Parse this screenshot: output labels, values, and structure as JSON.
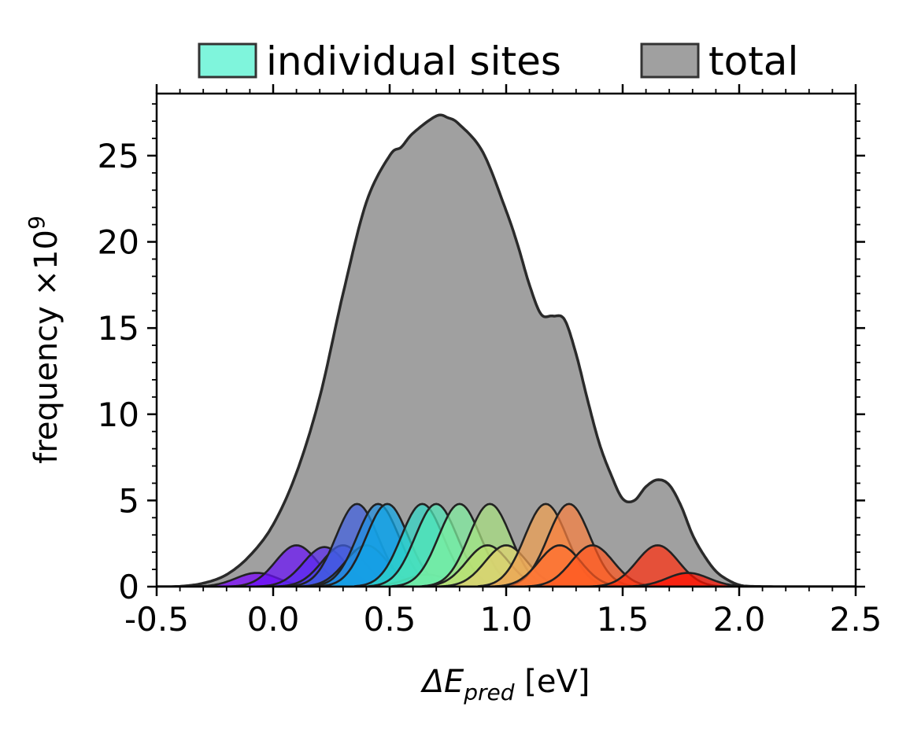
{
  "chart_data": {
    "type": "area",
    "xlabel": "ΔE",
    "xlabel_sub": "pred",
    "xlabel_unit": " [eV]",
    "ylabel": "frequency ×10",
    "ylabel_exp": "9",
    "xlim": [
      -0.5,
      2.5
    ],
    "ylim": [
      0,
      28.6
    ],
    "xticks": [
      -0.5,
      0.0,
      0.5,
      1.0,
      1.5,
      2.0,
      2.5
    ],
    "xtick_labels": [
      "-0.5",
      "0.0",
      "0.5",
      "1.0",
      "1.5",
      "2.0",
      "2.5"
    ],
    "yticks": [
      0,
      5,
      10,
      15,
      20,
      25
    ],
    "ytick_labels": [
      "0",
      "5",
      "10",
      "15",
      "20",
      "25"
    ],
    "grid": false,
    "legend": {
      "position": "top",
      "entries": [
        {
          "label": "individual sites",
          "color": "#7ff5dc"
        },
        {
          "label": "total",
          "color": "#a0a0a0"
        }
      ]
    },
    "sigma": 0.09,
    "sites": [
      {
        "mu": -0.07,
        "height": 0.8,
        "color": "#7a00ff"
      },
      {
        "mu": 0.1,
        "height": 2.4,
        "color": "#6a10f8"
      },
      {
        "mu": 0.22,
        "height": 2.3,
        "color": "#5a2af0"
      },
      {
        "mu": 0.3,
        "height": 2.4,
        "color": "#4b45e8"
      },
      {
        "mu": 0.36,
        "height": 4.8,
        "color": "#4060e0"
      },
      {
        "mu": 0.4,
        "height": 2.4,
        "color": "#307ad8"
      },
      {
        "mu": 0.45,
        "height": 4.8,
        "color": "#2090e0"
      },
      {
        "mu": 0.49,
        "height": 4.8,
        "color": "#10a8e8"
      },
      {
        "mu": 0.66,
        "height": 0.7,
        "color": "#20c0d8"
      },
      {
        "mu": 0.64,
        "height": 4.8,
        "color": "#30d8c8"
      },
      {
        "mu": 0.7,
        "height": 4.8,
        "color": "#50e8b8"
      },
      {
        "mu": 0.8,
        "height": 4.8,
        "color": "#80f0a0"
      },
      {
        "mu": 0.93,
        "height": 4.8,
        "color": "#a8e080"
      },
      {
        "mu": 0.92,
        "height": 2.4,
        "color": "#c0e070"
      },
      {
        "mu": 1.0,
        "height": 2.4,
        "color": "#e0d070"
      },
      {
        "mu": 1.17,
        "height": 4.8,
        "color": "#f0a050"
      },
      {
        "mu": 1.27,
        "height": 4.8,
        "color": "#f88040"
      },
      {
        "mu": 1.23,
        "height": 2.4,
        "color": "#ff7030"
      },
      {
        "mu": 1.37,
        "height": 2.4,
        "color": "#ff5820"
      },
      {
        "mu": 1.65,
        "height": 2.4,
        "color": "#ff3010"
      },
      {
        "mu": 1.78,
        "height": 0.8,
        "color": "#ff1000"
      }
    ],
    "total_color": "#a0a0a0",
    "total_knots": [
      [
        -0.5,
        0.0
      ],
      [
        -0.4,
        0.02
      ],
      [
        -0.3,
        0.2
      ],
      [
        -0.2,
        0.7
      ],
      [
        -0.1,
        1.8
      ],
      [
        0.0,
        3.6
      ],
      [
        0.1,
        6.6
      ],
      [
        0.2,
        11.0
      ],
      [
        0.3,
        17.0
      ],
      [
        0.4,
        22.3
      ],
      [
        0.5,
        25.0
      ],
      [
        0.55,
        25.5
      ],
      [
        0.6,
        26.3
      ],
      [
        0.7,
        27.3
      ],
      [
        0.75,
        27.2
      ],
      [
        0.8,
        26.8
      ],
      [
        0.9,
        25.2
      ],
      [
        1.0,
        21.8
      ],
      [
        1.05,
        19.8
      ],
      [
        1.1,
        17.5
      ],
      [
        1.15,
        15.8
      ],
      [
        1.2,
        15.7
      ],
      [
        1.25,
        15.5
      ],
      [
        1.3,
        13.5
      ],
      [
        1.35,
        10.8
      ],
      [
        1.4,
        8.3
      ],
      [
        1.45,
        6.5
      ],
      [
        1.5,
        5.1
      ],
      [
        1.55,
        5.0
      ],
      [
        1.6,
        5.8
      ],
      [
        1.65,
        6.2
      ],
      [
        1.7,
        5.9
      ],
      [
        1.75,
        4.7
      ],
      [
        1.8,
        3.0
      ],
      [
        1.85,
        1.8
      ],
      [
        1.9,
        0.9
      ],
      [
        1.95,
        0.4
      ],
      [
        2.0,
        0.1
      ],
      [
        2.05,
        0.02
      ],
      [
        2.2,
        0.0
      ],
      [
        2.5,
        0.0
      ]
    ]
  }
}
